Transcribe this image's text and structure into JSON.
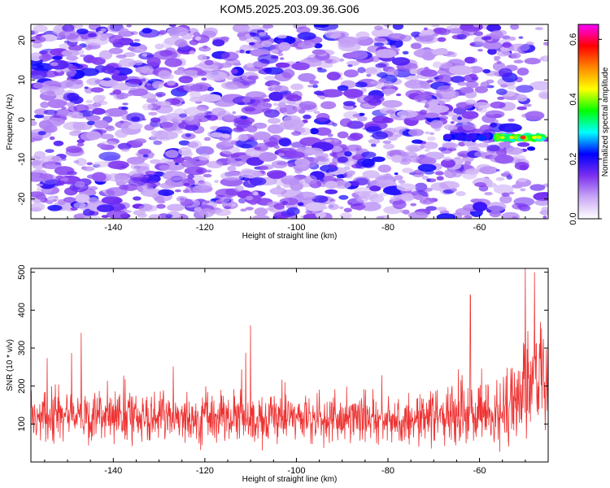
{
  "figure": {
    "title": "KOM5.2025.203.09.36.G06"
  },
  "chart_data": [
    {
      "type": "heatmap",
      "panel": "spectrogram",
      "xlabel": "Height of straight line (km)",
      "ylabel": "Frequency (Hz)",
      "xlim": [
        -158,
        -45
      ],
      "ylim": [
        -25,
        24
      ],
      "xticks": [
        "-140",
        "-120",
        "-100",
        "-80",
        "-60"
      ],
      "xtick_values": [
        -140,
        -120,
        -100,
        -80,
        -60
      ],
      "yticks": [
        "-20",
        "-10",
        "0",
        "10",
        "20"
      ],
      "ytick_values": [
        -20,
        -10,
        0,
        10,
        20
      ],
      "colorbar": {
        "label": "Normalized spectral amplitude",
        "range": [
          0.0,
          0.65
        ],
        "ticks": [
          "0.0",
          "0.2",
          "0.4",
          "0.6"
        ],
        "tick_values": [
          0.0,
          0.2,
          0.4,
          0.6
        ],
        "colormap": [
          "#ffffff",
          "#c9a8f5",
          "#7b2ff0",
          "#0000ff",
          "#00ffff",
          "#00ff00",
          "#ffff00",
          "#ff8800",
          "#ff0000",
          "#ff00ff"
        ]
      },
      "background_level": "noise 0.05–0.15 throughout",
      "feature": {
        "description_values": "signal band",
        "x_range": [
          -68,
          -46
        ],
        "frequency": -4.5,
        "peak_x": -50.5,
        "peak_value": 0.55
      }
    },
    {
      "type": "line",
      "panel": "snr",
      "xlabel": "Height of straight line (km)",
      "ylabel": "SNR (10 * v/v)",
      "xlim": [
        -158,
        -45
      ],
      "ylim": [
        0,
        510
      ],
      "xticks": [
        "-140",
        "-120",
        "-100",
        "-80",
        "-60"
      ],
      "xtick_values": [
        -140,
        -120,
        -100,
        -80,
        -60
      ],
      "yticks": [
        "100",
        "200",
        "300",
        "400",
        "500"
      ],
      "ytick_values": [
        100,
        200,
        300,
        400,
        500
      ],
      "line_color": "#ee3333",
      "baseline_mean": 115,
      "baseline_spread": 60,
      "notable_peaks": [
        {
          "x": -147,
          "y": 340
        },
        {
          "x": -110,
          "y": 360
        },
        {
          "x": -62,
          "y": 440
        },
        {
          "x": -50,
          "y": 510
        },
        {
          "x": -48,
          "y": 500
        }
      ]
    }
  ]
}
